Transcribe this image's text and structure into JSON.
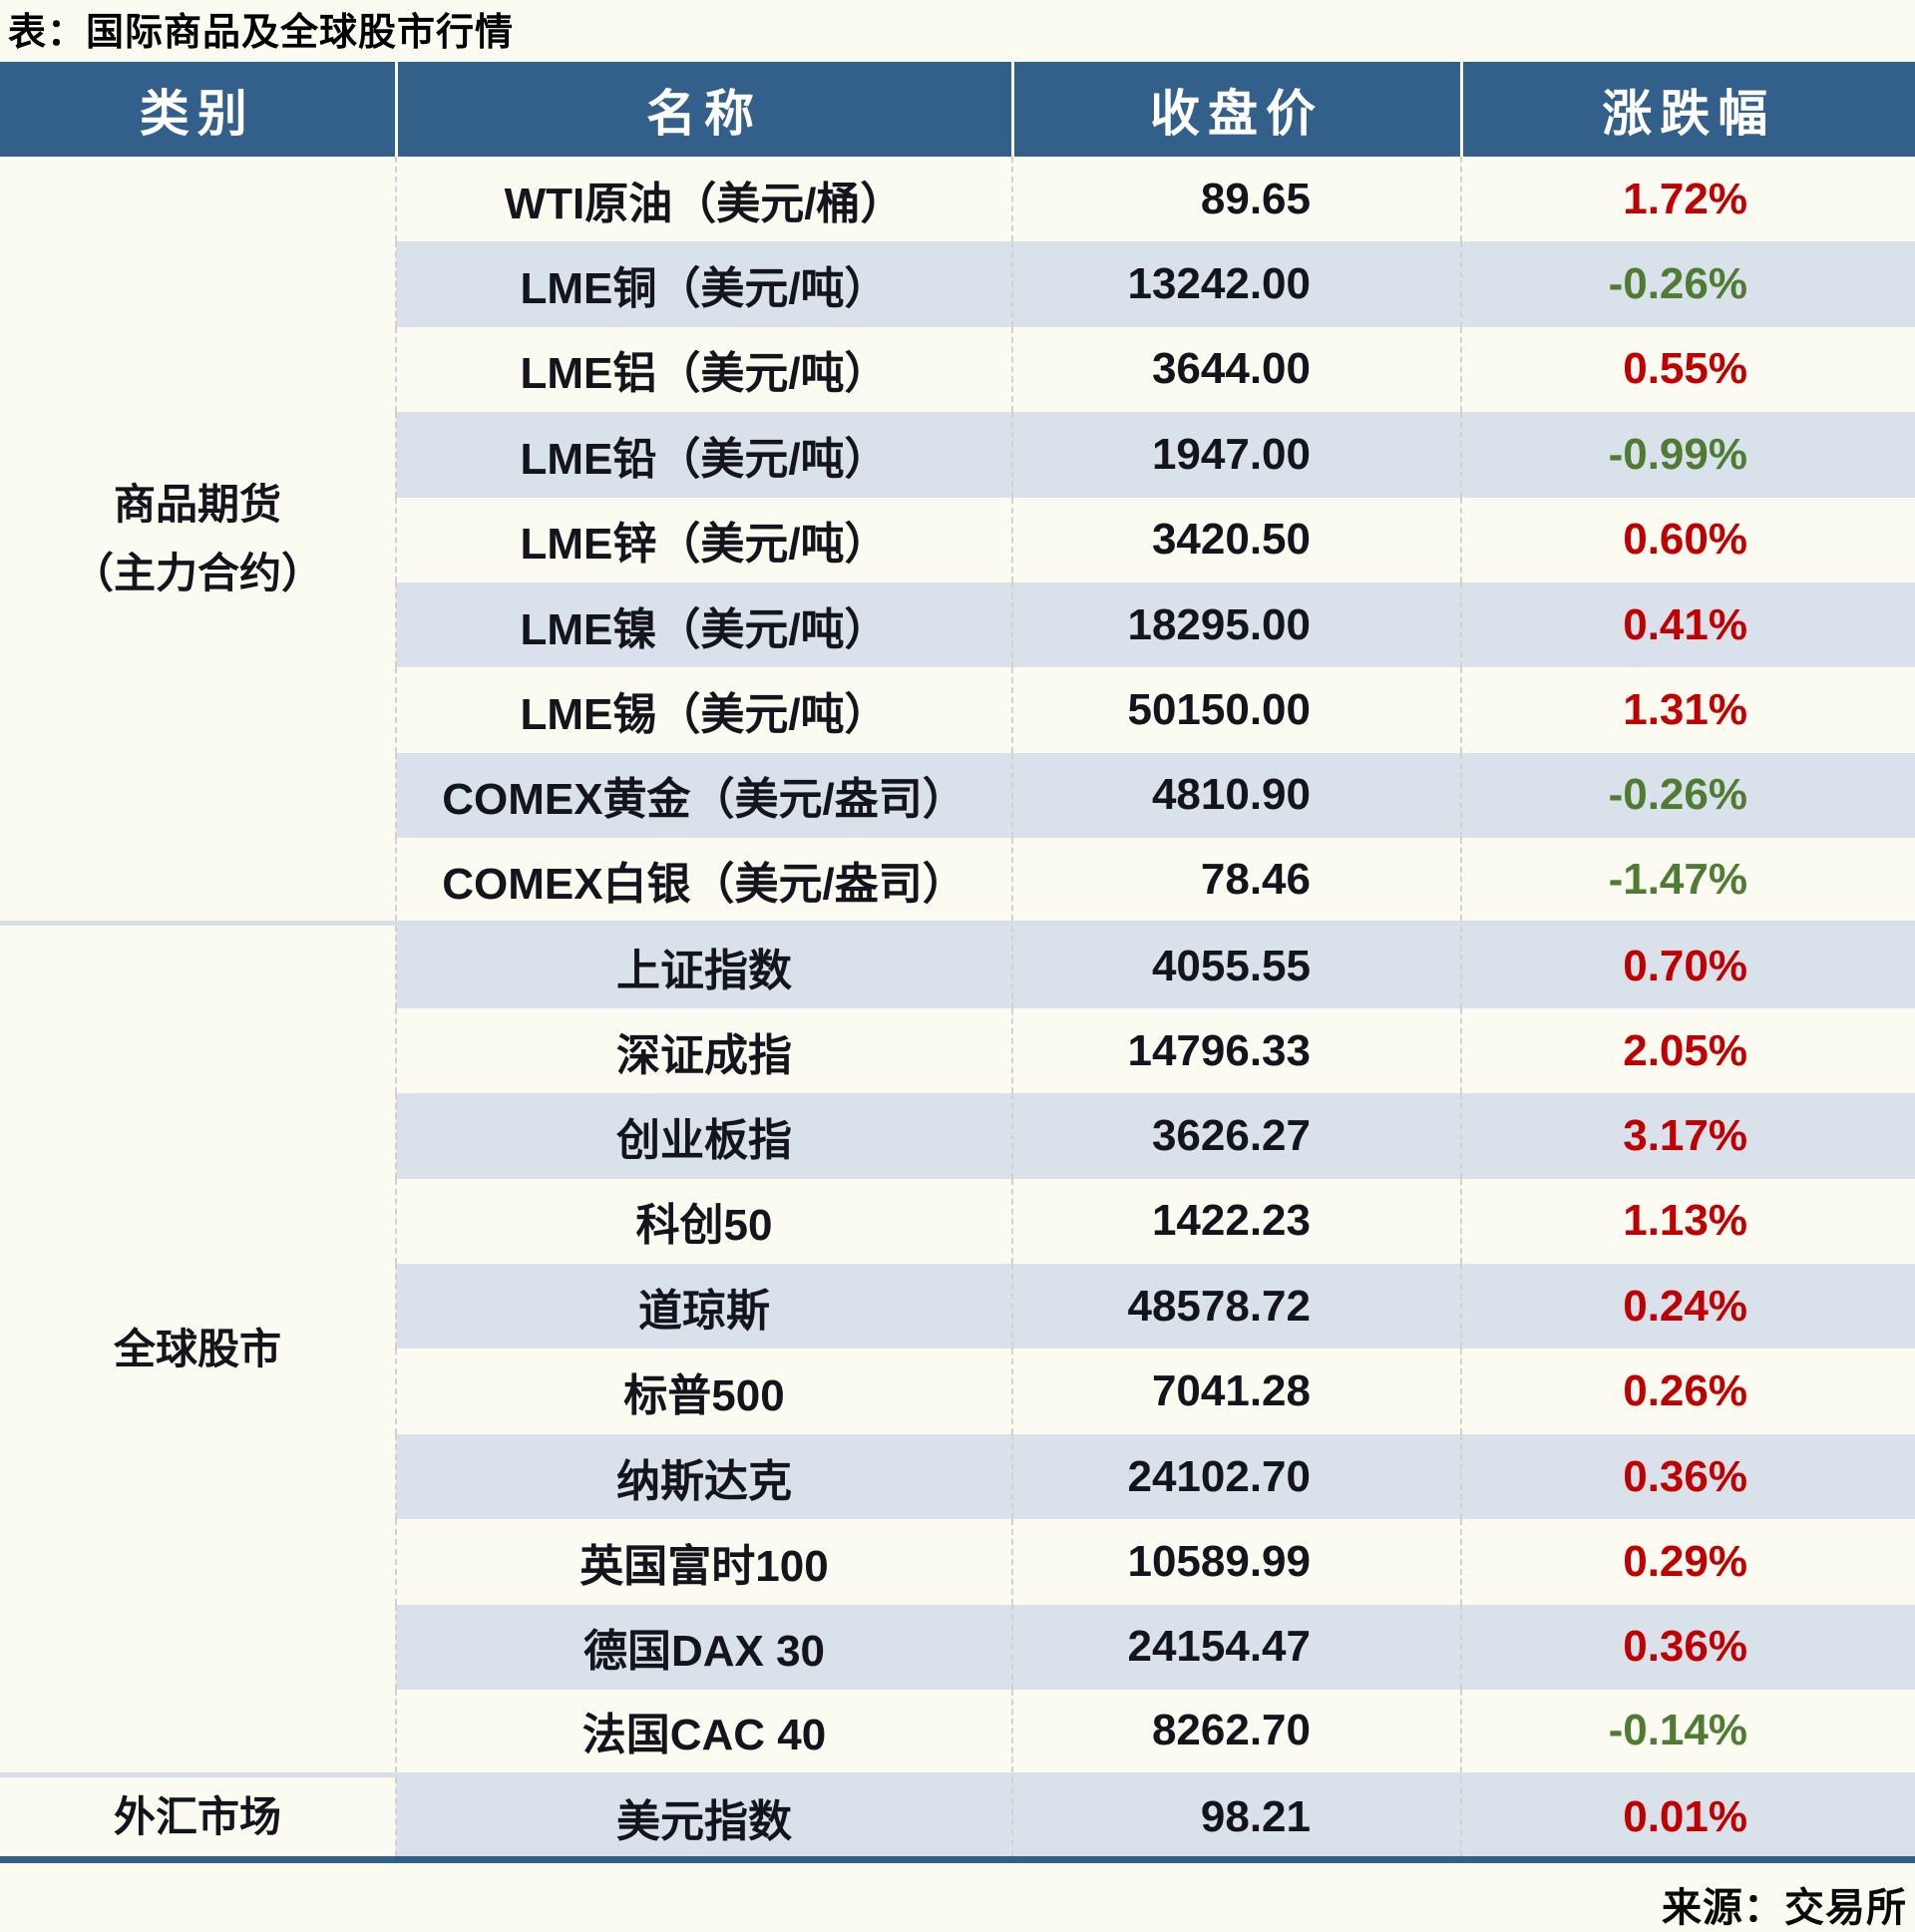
{
  "title": "表：国际商品及全球股市行情",
  "source": "来源：交易所",
  "chart_data": {
    "type": "table",
    "title": "表：国际商品及全球股市行情",
    "columns": [
      "类别",
      "名称",
      "收盘价",
      "涨跌幅"
    ],
    "sections": [
      {
        "category_lines": [
          "商品期货",
          "（主力合约）"
        ],
        "rows": [
          {
            "name": "WTI原油（美元/桶）",
            "close": "89.65",
            "change": "1.72%",
            "direction": "up"
          },
          {
            "name": "LME铜（美元/吨）",
            "close": "13242.00",
            "change": "-0.26%",
            "direction": "down"
          },
          {
            "name": "LME铝（美元/吨）",
            "close": "3644.00",
            "change": "0.55%",
            "direction": "up"
          },
          {
            "name": "LME铅（美元/吨）",
            "close": "1947.00",
            "change": "-0.99%",
            "direction": "down"
          },
          {
            "name": "LME锌（美元/吨）",
            "close": "3420.50",
            "change": "0.60%",
            "direction": "up"
          },
          {
            "name": "LME镍（美元/吨）",
            "close": "18295.00",
            "change": "0.41%",
            "direction": "up"
          },
          {
            "name": "LME锡（美元/吨）",
            "close": "50150.00",
            "change": "1.31%",
            "direction": "up"
          },
          {
            "name": "COMEX黄金（美元/盎司）",
            "close": "4810.90",
            "change": "-0.26%",
            "direction": "down"
          },
          {
            "name": "COMEX白银（美元/盎司）",
            "close": "78.46",
            "change": "-1.47%",
            "direction": "down"
          }
        ]
      },
      {
        "category_lines": [
          "全球股市"
        ],
        "rows": [
          {
            "name": "上证指数",
            "close": "4055.55",
            "change": "0.70%",
            "direction": "up"
          },
          {
            "name": "深证成指",
            "close": "14796.33",
            "change": "2.05%",
            "direction": "up"
          },
          {
            "name": "创业板指",
            "close": "3626.27",
            "change": "3.17%",
            "direction": "up"
          },
          {
            "name": "科创50",
            "close": "1422.23",
            "change": "1.13%",
            "direction": "up"
          },
          {
            "name": "道琼斯",
            "close": "48578.72",
            "change": "0.24%",
            "direction": "up"
          },
          {
            "name": "标普500",
            "close": "7041.28",
            "change": "0.26%",
            "direction": "up"
          },
          {
            "name": "纳斯达克",
            "close": "24102.70",
            "change": "0.36%",
            "direction": "up"
          },
          {
            "name": "英国富时100",
            "close": "10589.99",
            "change": "0.29%",
            "direction": "up"
          },
          {
            "name": "德国DAX 30",
            "close": "24154.47",
            "change": "0.36%",
            "direction": "up"
          },
          {
            "name": "法国CAC 40",
            "close": "8262.70",
            "change": "-0.14%",
            "direction": "down"
          }
        ]
      },
      {
        "category_lines": [
          "外汇市场"
        ],
        "rows": [
          {
            "name": "美元指数",
            "close": "98.21",
            "change": "0.01%",
            "direction": "up"
          }
        ]
      }
    ],
    "source": "来源：交易所",
    "colors": {
      "header_bg": "#32608A",
      "header_text": "#FFFFFF",
      "stripe": "#D9E1EB",
      "up_red": "#C00000",
      "down_green": "#4E7C33",
      "body_text": "#14141D",
      "bottom_border": "#32608A"
    },
    "layout_hints": {
      "grid": "off",
      "stripe_alternating": true,
      "value_alignment": "right"
    }
  }
}
